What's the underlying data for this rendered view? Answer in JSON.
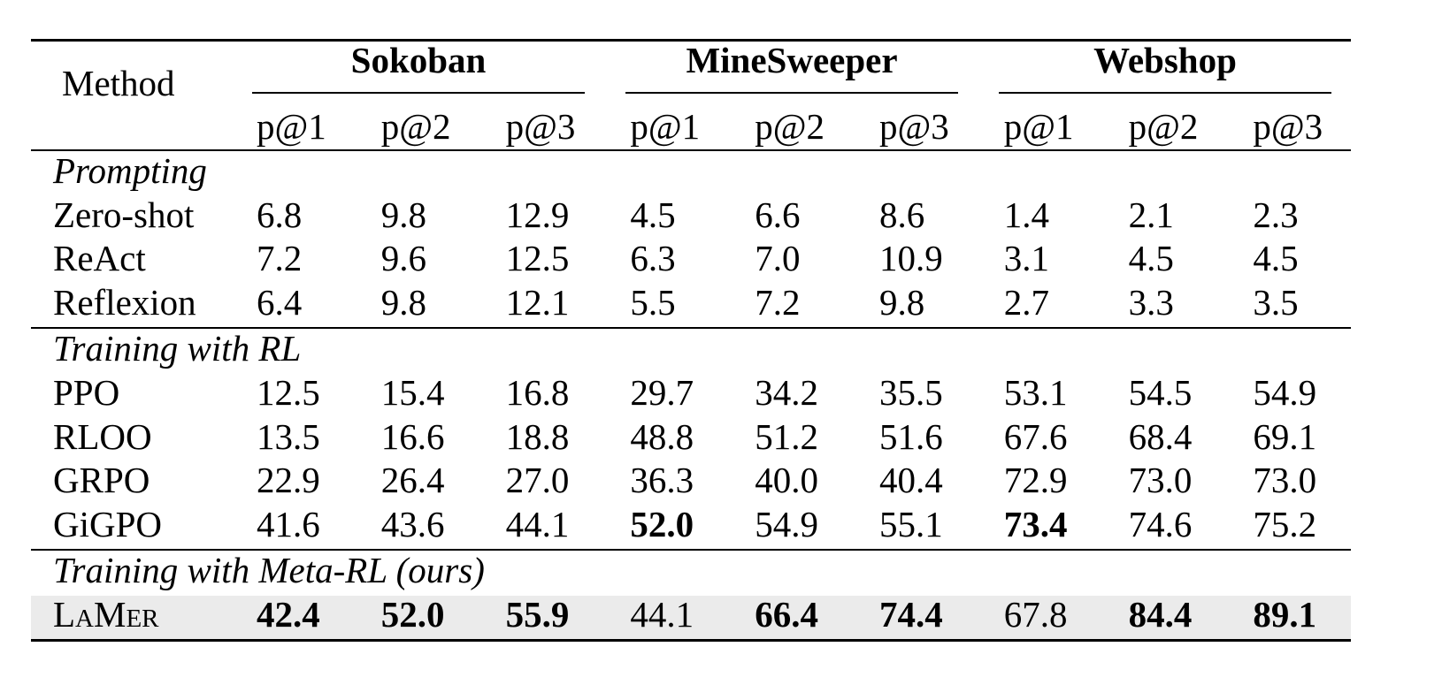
{
  "table": {
    "header": {
      "method": "Method",
      "groups": [
        {
          "name": "Sokoban",
          "columns": [
            "p@1",
            "p@2",
            "p@3"
          ]
        },
        {
          "name": "MineSweeper",
          "columns": [
            "p@1",
            "p@2",
            "p@3"
          ]
        },
        {
          "name": "Webshop",
          "columns": [
            "p@1",
            "p@2",
            "p@3"
          ]
        }
      ]
    },
    "sections": [
      {
        "title": "Prompting",
        "rows": [
          {
            "method": "Zero-shot",
            "values": [
              "6.8",
              "9.8",
              "12.9",
              "4.5",
              "6.6",
              "8.6",
              "1.4",
              "2.1",
              "2.3"
            ]
          },
          {
            "method": "ReAct",
            "values": [
              "7.2",
              "9.6",
              "12.5",
              "6.3",
              "7.0",
              "10.9",
              "3.1",
              "4.5",
              "4.5"
            ]
          },
          {
            "method": "Reflexion",
            "values": [
              "6.4",
              "9.8",
              "12.1",
              "5.5",
              "7.2",
              "9.8",
              "2.7",
              "3.3",
              "3.5"
            ]
          }
        ]
      },
      {
        "title": "Training with RL",
        "rows": [
          {
            "method": "PPO",
            "values": [
              "12.5",
              "15.4",
              "16.8",
              "29.7",
              "34.2",
              "35.5",
              "53.1",
              "54.5",
              "54.9"
            ]
          },
          {
            "method": "RLOO",
            "values": [
              "13.5",
              "16.6",
              "18.8",
              "48.8",
              "51.2",
              "51.6",
              "67.6",
              "68.4",
              "69.1"
            ]
          },
          {
            "method": "GRPO",
            "values": [
              "22.9",
              "26.4",
              "27.0",
              "36.3",
              "40.0",
              "40.4",
              "72.9",
              "73.0",
              "73.0"
            ]
          },
          {
            "method": "GiGPO",
            "values": [
              "41.6",
              "43.6",
              "44.1",
              "52.0",
              "54.9",
              "55.1",
              "73.4",
              "74.6",
              "75.2"
            ],
            "bold": [
              3,
              6
            ]
          }
        ]
      },
      {
        "title": "Training with Meta-RL (ours)",
        "rows": [
          {
            "method": "LaMer",
            "values": [
              "42.4",
              "52.0",
              "55.9",
              "44.1",
              "66.4",
              "74.4",
              "67.8",
              "84.4",
              "89.1"
            ],
            "bold": [
              0,
              1,
              2,
              4,
              5,
              7,
              8
            ],
            "highlight": true,
            "small_caps": true
          }
        ]
      }
    ]
  }
}
